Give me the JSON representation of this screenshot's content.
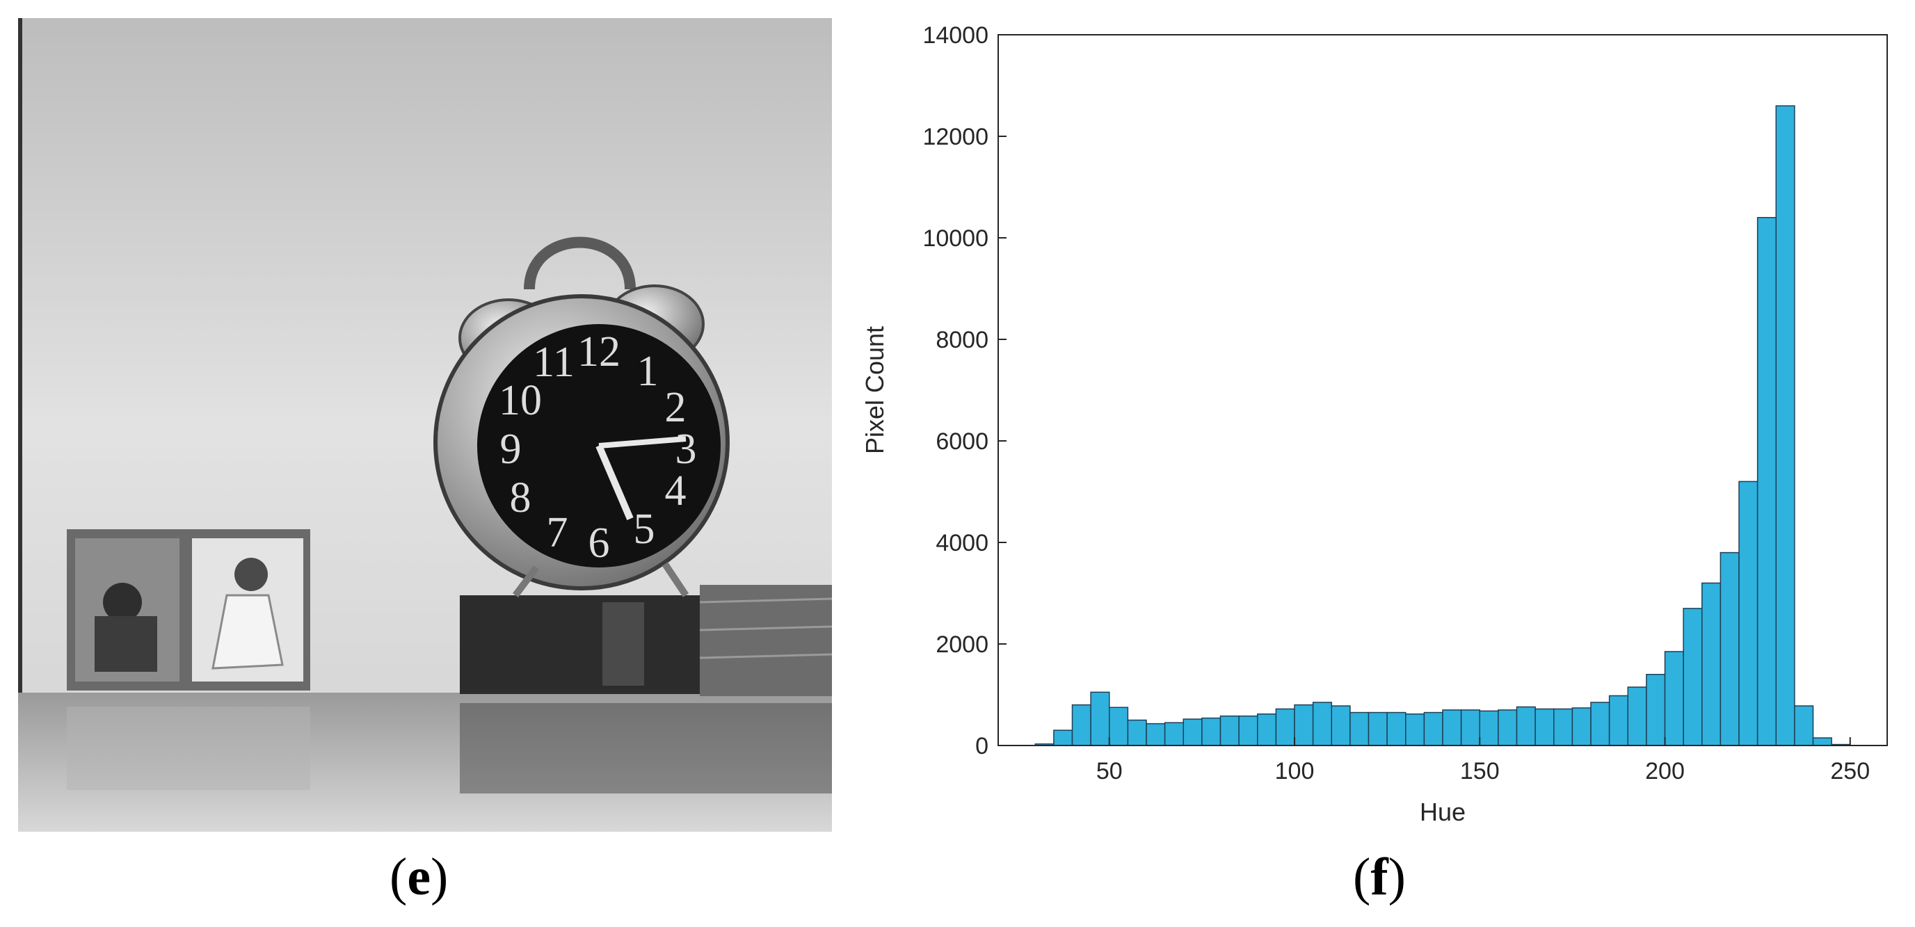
{
  "panel_e": {
    "caption_open": "(",
    "caption_letter": "e",
    "caption_close": ")",
    "clock_numerals": [
      "12",
      "11",
      "1",
      "10",
      "2",
      "9",
      "3",
      "8",
      "4",
      "7",
      "5",
      "6"
    ]
  },
  "panel_f": {
    "caption_open": "(",
    "caption_letter": "f",
    "caption_close": ")"
  },
  "colors": {
    "bar_fill": "#2fb2de",
    "bar_edge": "#1f3f55",
    "axis": "#262626"
  },
  "chart_data": {
    "type": "bar",
    "subtype": "histogram",
    "title": "",
    "xlabel": "Hue",
    "ylabel": "Pixel Count",
    "xlim": [
      20,
      260
    ],
    "ylim": [
      0,
      14000
    ],
    "xticks": [
      50,
      100,
      150,
      200,
      250
    ],
    "yticks": [
      0,
      2000,
      4000,
      6000,
      8000,
      10000,
      12000,
      14000
    ],
    "bin_width": 5,
    "bin_starts": [
      30,
      35,
      40,
      45,
      50,
      55,
      60,
      65,
      70,
      75,
      80,
      85,
      90,
      95,
      100,
      105,
      110,
      115,
      120,
      125,
      130,
      135,
      140,
      145,
      150,
      155,
      160,
      165,
      170,
      175,
      180,
      185,
      190,
      195,
      200,
      205,
      210,
      215,
      220,
      225,
      230,
      235,
      240,
      245
    ],
    "values": [
      30,
      300,
      800,
      1050,
      750,
      500,
      430,
      450,
      520,
      540,
      580,
      580,
      620,
      720,
      800,
      850,
      780,
      650,
      650,
      650,
      620,
      650,
      700,
      700,
      680,
      700,
      760,
      720,
      720,
      740,
      850,
      980,
      1150,
      1400,
      1850,
      2700,
      3200,
      3800,
      5200,
      10400,
      12600,
      780,
      150,
      20
    ],
    "grid": false,
    "legend": "none"
  }
}
